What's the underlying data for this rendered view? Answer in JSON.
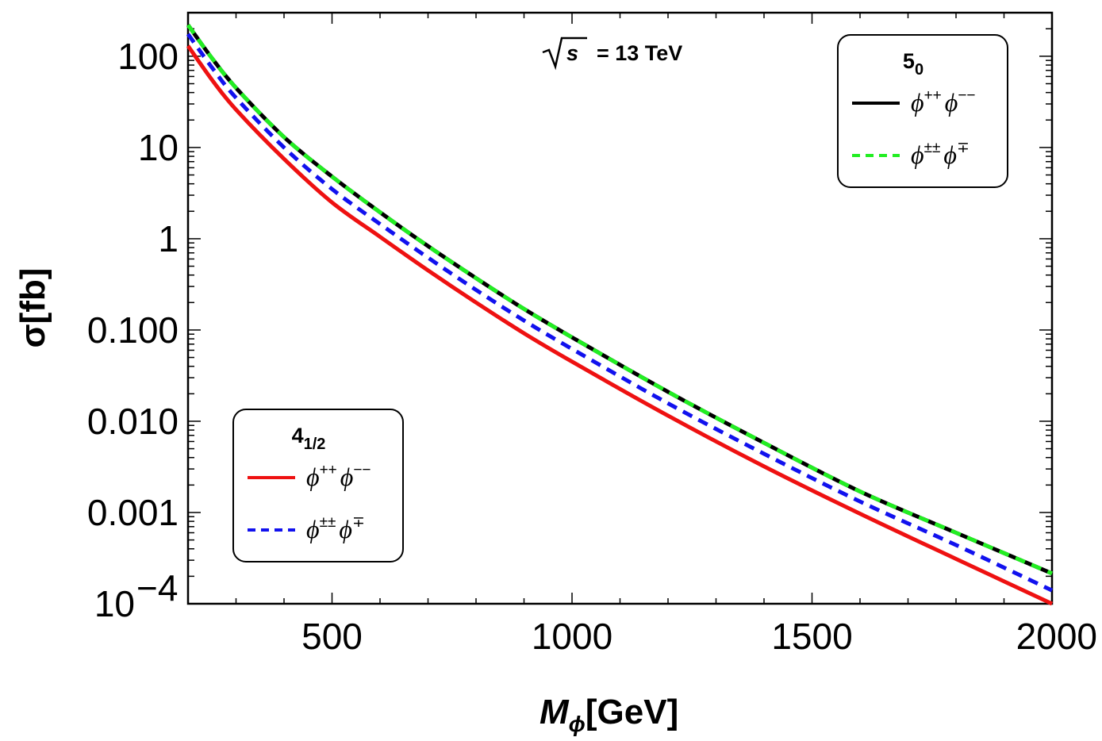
{
  "chart_data": {
    "type": "line",
    "yscale": "log",
    "xlabel": "M",
    "xlabel_sub": "ϕ",
    "xlabel_unit": "[GeV]",
    "ylabel": "σ[fb]",
    "xlim": [
      200,
      2000
    ],
    "ylim": [
      0.0001,
      300
    ],
    "x_ticks": [
      {
        "value": 500,
        "label": "500"
      },
      {
        "value": 1000,
        "label": "1000"
      },
      {
        "value": 1500,
        "label": "1500"
      },
      {
        "value": 2000,
        "label": "2000"
      }
    ],
    "y_ticks": [
      {
        "value": 100,
        "label": "100"
      },
      {
        "value": 10,
        "label": "10"
      },
      {
        "value": 1,
        "label": "1"
      },
      {
        "value": 0.1,
        "label": "0.100"
      },
      {
        "value": 0.01,
        "label": "0.010"
      },
      {
        "value": 0.001,
        "label": "0.001"
      },
      {
        "value": 0.0001,
        "label": "10",
        "exp": "−4"
      }
    ],
    "annotation": {
      "sqrt": "√",
      "s": "s",
      "rest": "= 13 TeV"
    },
    "x": [
      200,
      250,
      300,
      400,
      500,
      600,
      700,
      800,
      900,
      1000,
      1200,
      1400,
      1600,
      1800,
      2000
    ],
    "series": [
      {
        "name": "5_0 ϕ++ϕ−−",
        "color": "#000000",
        "style": "solid",
        "values": [
          220,
          95,
          45,
          13,
          4.8,
          1.95,
          0.83,
          0.37,
          0.17,
          0.083,
          0.021,
          0.0058,
          0.0017,
          0.0006,
          0.000215
        ]
      },
      {
        "name": "5_0 ϕ±±ϕ∓",
        "color": "#22ee22",
        "style": "dashed",
        "values": [
          220,
          95,
          45,
          13,
          4.8,
          1.95,
          0.83,
          0.37,
          0.17,
          0.083,
          0.021,
          0.0058,
          0.0017,
          0.0006,
          0.000215
        ]
      },
      {
        "name": "4_1/2 ϕ++ϕ−−",
        "color": "#ee1111",
        "style": "solid",
        "values": [
          130,
          55,
          26,
          7.5,
          2.5,
          1.05,
          0.45,
          0.2,
          0.092,
          0.045,
          0.0115,
          0.0032,
          0.00097,
          0.00031,
          0.0001
        ]
      },
      {
        "name": "4_1/2 ϕ±±ϕ∓",
        "color": "#1111ee",
        "style": "dashed",
        "values": [
          175,
          75,
          35,
          10,
          3.5,
          1.45,
          0.62,
          0.275,
          0.127,
          0.062,
          0.0157,
          0.0044,
          0.00132,
          0.00044,
          0.00014
        ]
      }
    ],
    "legends": [
      {
        "title": "5",
        "title_sub": "0",
        "entries": [
          {
            "base1": "ϕ",
            "sup1": "++",
            "base2": "ϕ",
            "sup2": "−−",
            "color": "#000000",
            "style": "solid"
          },
          {
            "base1": "ϕ",
            "sup1": "±±",
            "base2": "ϕ",
            "sup2": "∓",
            "color": "#22ee22",
            "style": "dashed"
          }
        ]
      },
      {
        "title": "4",
        "title_sub": "1/2",
        "entries": [
          {
            "base1": "ϕ",
            "sup1": "++",
            "base2": "ϕ",
            "sup2": "−−",
            "color": "#ee1111",
            "style": "solid"
          },
          {
            "base1": "ϕ",
            "sup1": "±±",
            "base2": "ϕ",
            "sup2": "∓",
            "color": "#1111ee",
            "style": "dashed"
          }
        ]
      }
    ]
  }
}
